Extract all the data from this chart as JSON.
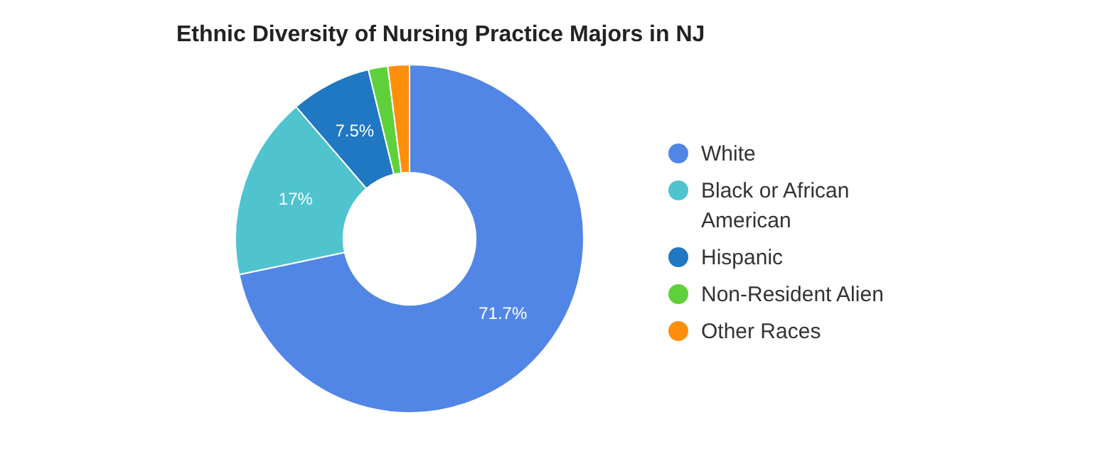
{
  "chart_data": {
    "type": "donut",
    "title": "Ethnic Diversity of Nursing Practice Majors in NJ",
    "categories": [
      "White",
      "Black or African American",
      "Hispanic",
      "Non-Resident Alien",
      "Other Races"
    ],
    "values": [
      71.7,
      17,
      7.5,
      1.8,
      2.0
    ],
    "colors": [
      "#5286e6",
      "#4fc4cf",
      "#1f78c1",
      "#5ed13a",
      "#ff8f0a"
    ],
    "value_labels": [
      "71.7%",
      "17%",
      "7.5%",
      null,
      null
    ],
    "legend": "right"
  }
}
